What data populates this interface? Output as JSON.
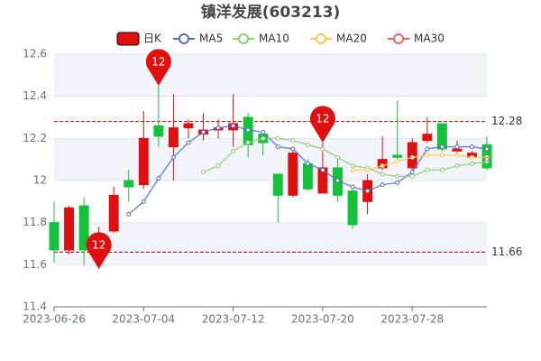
{
  "chart_data": {
    "type": "candlestick",
    "title": "镇洋发展(603213)",
    "categories": [
      "2023-06-26",
      null,
      null,
      null,
      null,
      null,
      "2023-07-04",
      null,
      null,
      null,
      null,
      null,
      "2023-07-12",
      null,
      null,
      null,
      null,
      null,
      "2023-07-20",
      null,
      null,
      null,
      null,
      null,
      "2023-07-28",
      null,
      null,
      null,
      null,
      null
    ],
    "candles": {
      "name": "日K",
      "color": "#e01010",
      "down_color": "#13c23a",
      "open": [
        11.8,
        11.67,
        11.88,
        11.68,
        11.76,
        12.0,
        11.98,
        12.26,
        12.16,
        12.25,
        12.22,
        12.24,
        12.24,
        12.3,
        12.22,
        12.03,
        11.93,
        12.08,
        11.94,
        12.06,
        11.95,
        11.9,
        12.06,
        12.12,
        12.06,
        12.19,
        12.27,
        12.14,
        12.11,
        12.17
      ],
      "close": [
        11.67,
        11.87,
        11.67,
        11.74,
        11.93,
        11.97,
        12.2,
        12.21,
        12.25,
        12.27,
        12.24,
        12.25,
        12.27,
        12.17,
        12.18,
        11.93,
        12.13,
        11.96,
        12.06,
        11.93,
        11.79,
        12.0,
        12.1,
        12.11,
        12.18,
        12.22,
        12.15,
        12.15,
        12.13,
        12.06
      ],
      "high": [
        11.9,
        11.88,
        11.92,
        11.78,
        11.97,
        12.05,
        12.33,
        12.45,
        12.41,
        12.29,
        12.32,
        12.29,
        12.41,
        12.32,
        12.24,
        12.03,
        12.14,
        12.1,
        12.18,
        12.12,
        11.96,
        12.03,
        12.21,
        12.38,
        12.2,
        12.3,
        12.27,
        12.19,
        12.14,
        12.21
      ],
      "low": [
        11.61,
        11.65,
        11.6,
        11.58,
        11.75,
        11.9,
        11.96,
        12.16,
        12.0,
        12.2,
        12.19,
        12.2,
        12.16,
        12.11,
        12.12,
        11.8,
        11.92,
        11.95,
        11.94,
        11.9,
        11.77,
        11.84,
        12.05,
        12.1,
        12.04,
        12.18,
        12.14,
        12.12,
        12.1,
        12.05
      ]
    },
    "series": [
      {
        "name": "MA5",
        "color": "#5470c6",
        "values": [
          null,
          null,
          null,
          null,
          null,
          11.84,
          11.9,
          12.01,
          12.11,
          12.18,
          12.23,
          12.25,
          12.26,
          12.24,
          12.23,
          12.16,
          12.15,
          12.08,
          12.05,
          12.0,
          11.97,
          11.95,
          11.98,
          11.99,
          12.04,
          12.15,
          12.16,
          12.16,
          12.16,
          12.15
        ]
      },
      {
        "name": "MA10",
        "color": "#91cc75",
        "values": [
          null,
          null,
          null,
          null,
          null,
          null,
          null,
          null,
          null,
          null,
          12.04,
          12.07,
          12.14,
          12.18,
          12.2,
          12.2,
          12.19,
          12.17,
          12.15,
          12.11,
          12.07,
          12.06,
          12.03,
          12.02,
          12.02,
          12.05,
          12.05,
          12.07,
          12.08,
          12.09
        ]
      },
      {
        "name": "MA20",
        "color": "#fac858",
        "values": [
          null,
          null,
          null,
          null,
          null,
          null,
          null,
          null,
          null,
          null,
          null,
          null,
          null,
          null,
          null,
          null,
          null,
          null,
          null,
          null,
          12.05,
          12.05,
          12.07,
          12.09,
          12.11,
          12.12,
          12.12,
          12.12,
          12.11,
          12.11
        ]
      },
      {
        "name": "MA30",
        "color": "#ee6666",
        "values": [
          null,
          null,
          null,
          null,
          null,
          null,
          null,
          null,
          null,
          null,
          null,
          null,
          null,
          null,
          null,
          null,
          null,
          null,
          null,
          null,
          null,
          null,
          null,
          null,
          null,
          null,
          null,
          null,
          null,
          12.1
        ]
      }
    ],
    "pins": [
      {
        "value": 12.45,
        "label": "12"
      },
      {
        "value": 11.58,
        "label": "12"
      },
      {
        "value": 12.18,
        "label": "12"
      }
    ],
    "ref_lines": [
      {
        "value": 12.28,
        "label": "12.28"
      },
      {
        "value": 11.66,
        "label": "11.66"
      }
    ],
    "ylim": [
      11.4,
      12.6
    ],
    "yticks": [
      11.4,
      11.6,
      11.8,
      12,
      12.2,
      12.4,
      12.6
    ],
    "grid": true
  }
}
